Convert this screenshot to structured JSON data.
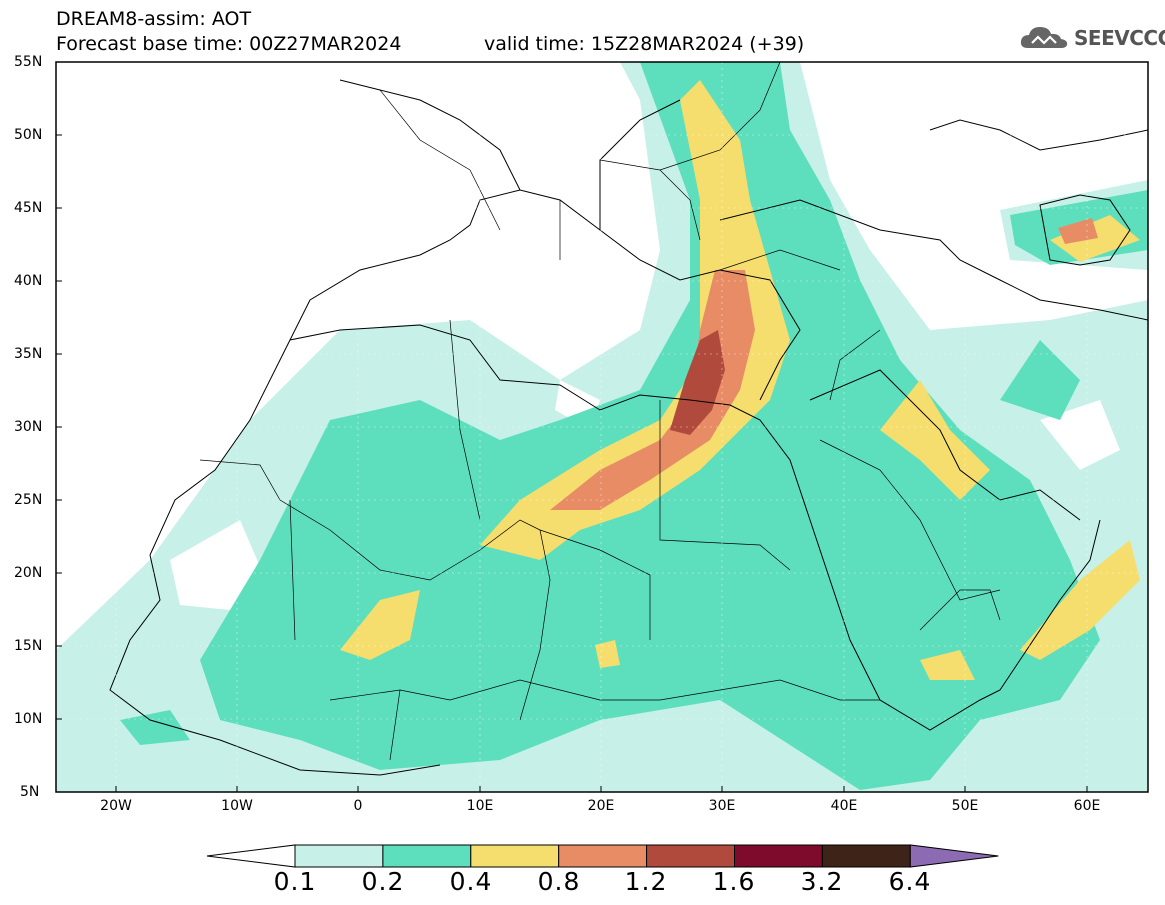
{
  "header": {
    "title": "DREAM8-assim: AOT",
    "base_time": "Forecast base time: 00Z27MAR2024",
    "valid_time": "valid time: 15Z28MAR2024 (+39)"
  },
  "logo": {
    "text": "SEEVCCC",
    "icon": "cloud-icon"
  },
  "map": {
    "lat_labels": [
      "55N",
      "50N",
      "45N",
      "40N",
      "35N",
      "30N",
      "25N",
      "20N",
      "15N",
      "10N",
      "5N"
    ],
    "lon_labels": [
      "20W",
      "10W",
      "0",
      "10E",
      "20E",
      "30E",
      "40E",
      "50E",
      "60E"
    ],
    "lat_range": [
      5,
      55
    ],
    "lon_range": [
      -25,
      65
    ],
    "grid": true
  },
  "colorbar": {
    "labels": [
      "0.1",
      "0.2",
      "0.4",
      "0.8",
      "1.2",
      "1.6",
      "3.2",
      "6.4"
    ],
    "colors": [
      "#c6f0e8",
      "#5ddfbd",
      "#f5de6e",
      "#e88c66",
      "#b04a3c",
      "#7e0a2c",
      "#3e2418",
      "#8d6bb2"
    ],
    "extend": "both"
  }
}
